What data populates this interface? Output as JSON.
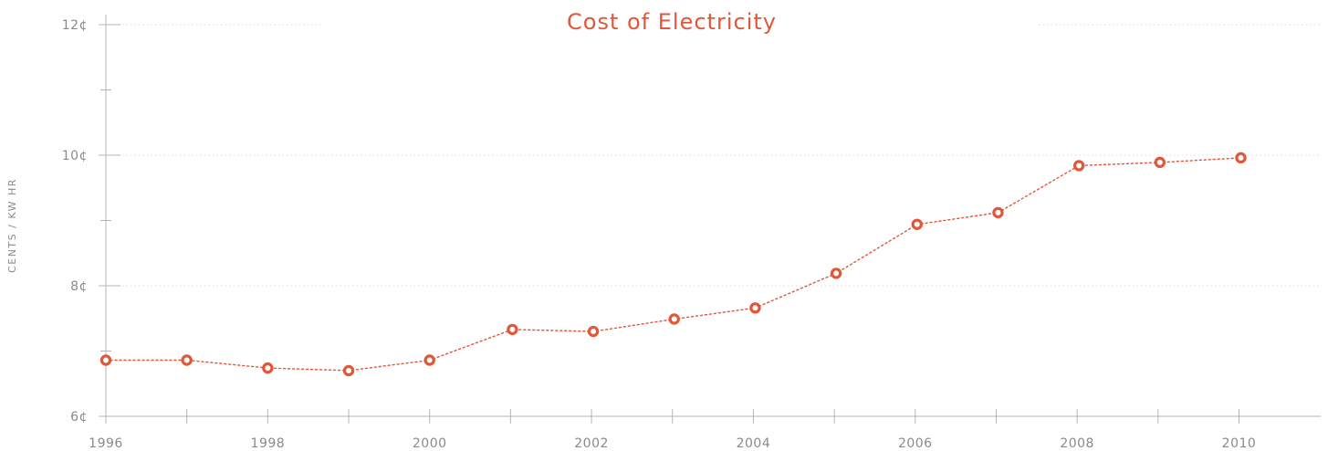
{
  "chart_data": {
    "type": "line",
    "title": "Cost of Electricity",
    "xlabel": "",
    "ylabel": "CENTS / KW HR",
    "x": [
      1996,
      1997,
      1998,
      1999,
      2000,
      2001,
      2002,
      2003,
      2004,
      2005,
      2006,
      2007,
      2008,
      2009,
      2010
    ],
    "series": [
      {
        "values": [
          6.86,
          6.86,
          6.74,
          6.7,
          6.86,
          7.33,
          7.3,
          7.49,
          7.66,
          8.19,
          8.94,
          9.12,
          9.84,
          9.89,
          9.96
        ]
      }
    ],
    "xlim": [
      1996,
      2011
    ],
    "ylim": [
      6,
      12
    ],
    "x_tick_labels": [
      "1996",
      "1998",
      "2000",
      "2002",
      "2004",
      "2006",
      "2008",
      "2010"
    ],
    "y_tick_labels": [
      "6¢",
      "8¢",
      "10¢",
      "12¢"
    ],
    "grid": true,
    "line_style": "dotted",
    "colors": {
      "accent": "#e0573a",
      "axis": "#b5b5b5",
      "grid": "#dddddd",
      "text": "#8a8a8a"
    }
  }
}
